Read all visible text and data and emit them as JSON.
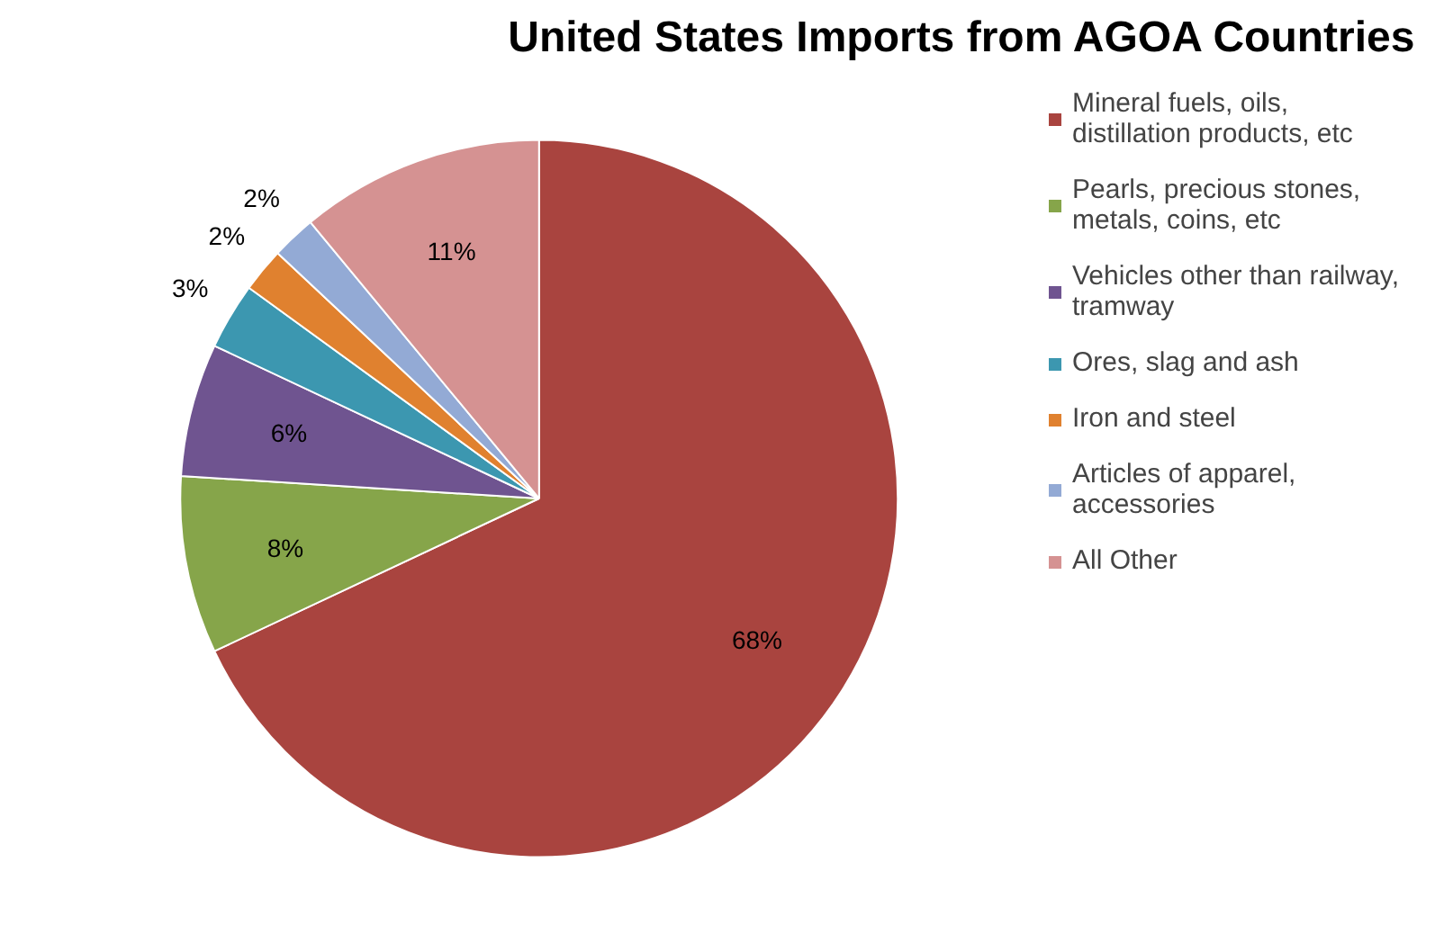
{
  "chart_data": {
    "type": "pie",
    "title": "United States Imports from AGOA Countries",
    "categories": [
      "Mineral fuels, oils, distillation products, etc",
      "Pearls, precious stones, metals, coins, etc",
      "Vehicles other than railway, tramway",
      "Ores, slag and ash",
      "Iron and steel",
      "Articles of apparel, accessories",
      "All Other"
    ],
    "values": [
      68,
      8,
      6,
      3,
      2,
      2,
      11
    ],
    "colors": [
      "#a9443f",
      "#86a54a",
      "#6f5490",
      "#3c97b0",
      "#e0812f",
      "#93aad5",
      "#d59292"
    ],
    "value_labels": [
      "68%",
      "8%",
      "6%",
      "3%",
      "2%",
      "2%",
      "11%"
    ],
    "legend": "right"
  }
}
